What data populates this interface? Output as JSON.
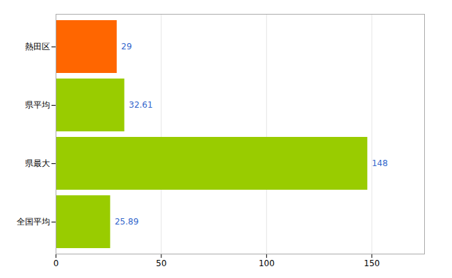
{
  "chart_data": {
    "type": "bar",
    "orientation": "horizontal",
    "categories": [
      "全国平均",
      "県最大",
      "県平均",
      "熱田区"
    ],
    "values": [
      25.89,
      148,
      32.61,
      29
    ],
    "colors": [
      "#99cc00",
      "#99cc00",
      "#99cc00",
      "#ff6600"
    ],
    "xlim": [
      0,
      175
    ],
    "xticks": [
      0,
      50,
      100,
      150
    ],
    "grid": true,
    "data_labels": true
  }
}
